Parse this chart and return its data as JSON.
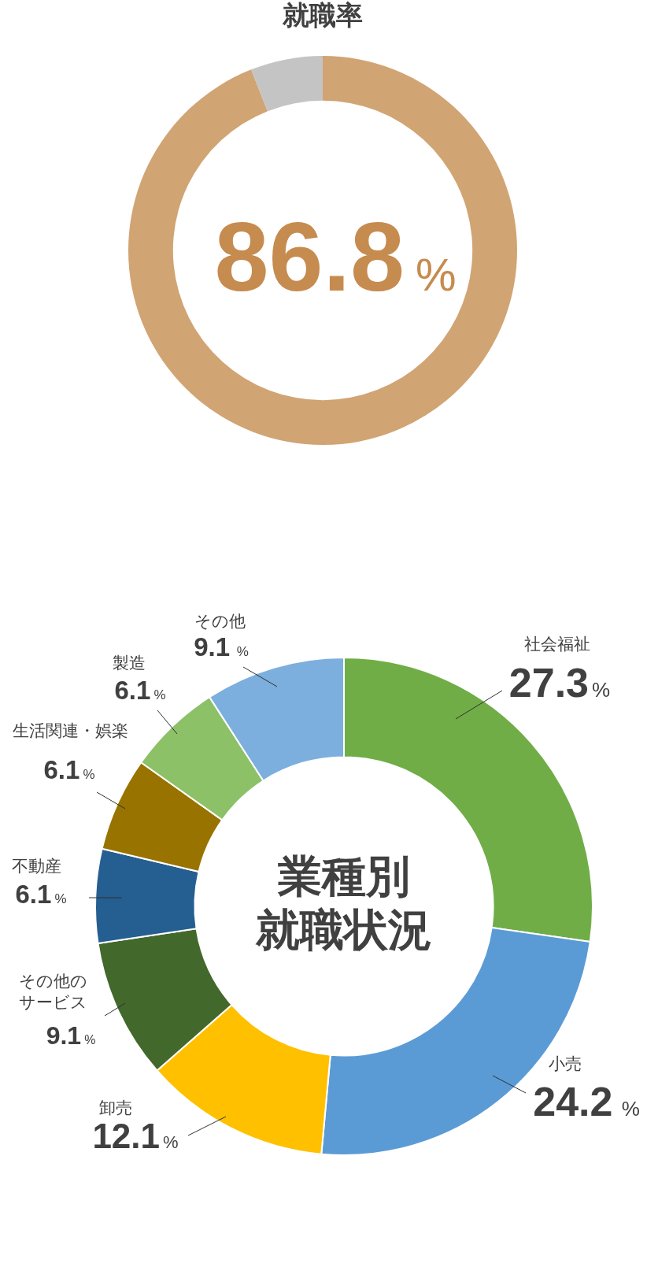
{
  "chart_data": [
    {
      "type": "donut",
      "title": "就職率",
      "categories": [
        null,
        null
      ],
      "values": [
        94,
        6
      ],
      "colors": [
        "#d1a473",
        "#c4c4c4"
      ],
      "annotations": [
        "86.8%"
      ]
    },
    {
      "type": "donut",
      "title": "業種別就職状況",
      "categories": [
        "社会福祉",
        "小売",
        "卸売",
        "その他のサービス",
        "不動産",
        "生活関連・娯楽",
        "製造",
        "その他"
      ],
      "values": [
        27.3,
        24.2,
        12.1,
        9.1,
        6.1,
        6.1,
        6.1,
        9.1
      ],
      "colors": [
        "#70ad47",
        "#5b9bd5",
        "#ffc000",
        "#43682b",
        "#255e91",
        "#997300",
        "#8cc168",
        "#7cafdd"
      ],
      "value_labels": [
        "27.3%",
        "24.2 %",
        "12.1%",
        "9.1%",
        "6.1%",
        "6.1%",
        "6.1%",
        "9.1 %"
      ]
    }
  ]
}
